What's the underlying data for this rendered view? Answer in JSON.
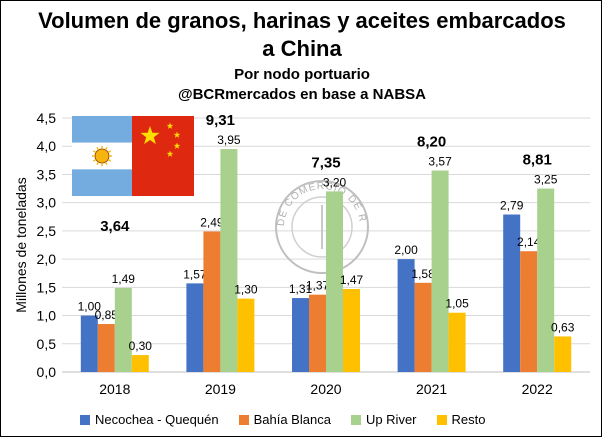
{
  "title_line1": "Volumen de granos, harinas y aceites embarcados",
  "title_line2": "a China",
  "subtitle1": "Por nodo portuario",
  "subtitle2": "@BCRmercados en base a NABSA",
  "watermark_text": "BOLSA DE COMERCIO DE ROSARIO",
  "chart_data": {
    "type": "bar",
    "categories": [
      "2018",
      "2019",
      "2020",
      "2021",
      "2022"
    ],
    "ylabel": "Millones de toneladas",
    "ylim": [
      0,
      4.5
    ],
    "yticks": [
      "0,0",
      "0,5",
      "1,0",
      "1,5",
      "2,0",
      "2,5",
      "3,0",
      "3,5",
      "4,0",
      "4,5"
    ],
    "grid": true,
    "legend_position": "bottom",
    "series": [
      {
        "name": "Necochea - Quequén",
        "color": "#4472C4",
        "values": [
          1.0,
          1.57,
          1.31,
          2.0,
          2.79
        ],
        "labels": [
          "1,00",
          "1,57",
          "1,31",
          "2,00",
          "2,79"
        ]
      },
      {
        "name": "Bahía Blanca",
        "color": "#ED7D31",
        "values": [
          0.85,
          2.49,
          1.37,
          1.58,
          2.14
        ],
        "labels": [
          "0,85",
          "2,49",
          "1,37",
          "1,58",
          "2,14"
        ]
      },
      {
        "name": "Up River",
        "color": "#A9D18E",
        "values": [
          1.49,
          3.95,
          3.2,
          3.57,
          3.25
        ],
        "labels": [
          "1,49",
          "3,95",
          "3,20",
          "3,57",
          "3,25"
        ]
      },
      {
        "name": "Resto",
        "color": "#FFC000",
        "values": [
          0.3,
          1.3,
          1.47,
          1.05,
          0.63
        ],
        "labels": [
          "0,30",
          "1,30",
          "1,47",
          "1,05",
          "0,63"
        ]
      }
    ],
    "totals": [
      "3,64",
      "9,31",
      "7,35",
      "8,20",
      "8,81"
    ],
    "total_values": [
      3.64,
      9.31,
      7.35,
      8.2,
      8.81
    ]
  }
}
